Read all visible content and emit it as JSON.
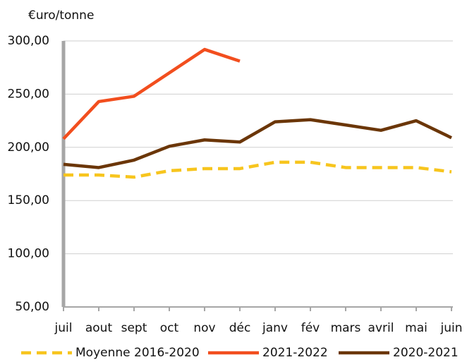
{
  "chart_data": {
    "type": "line",
    "ylabel": "€uro/tonne",
    "categories": [
      "juil",
      "aout",
      "sept",
      "oct",
      "nov",
      "déc",
      "janv",
      "fév",
      "mars",
      "avril",
      "mai",
      "juin"
    ],
    "series": [
      {
        "name": "Moyenne 2016-2020",
        "color": "#f7c51e",
        "dashed": true,
        "values": [
          174,
          174,
          172,
          178,
          180,
          180,
          186,
          186,
          181,
          181,
          181,
          177
        ]
      },
      {
        "name": "2021-2022",
        "color": "#f24e1e",
        "dashed": false,
        "values": [
          208,
          243,
          248,
          270,
          292,
          281,
          null,
          null,
          null,
          null,
          null,
          null
        ]
      },
      {
        "name": "2020-2021",
        "color": "#6b3608",
        "dashed": false,
        "values": [
          184,
          181,
          188,
          201,
          207,
          205,
          224,
          226,
          221,
          216,
          225,
          209
        ]
      }
    ],
    "ylim": [
      50,
      300
    ],
    "yticks": [
      {
        "value": 50,
        "label": "50,00"
      },
      {
        "value": 100,
        "label": "100,00"
      },
      {
        "value": 150,
        "label": "150,00"
      },
      {
        "value": 200,
        "label": "200,00"
      },
      {
        "value": 250,
        "label": "250,00"
      },
      {
        "value": 300,
        "label": "300,00"
      }
    ],
    "grid": true,
    "legend": "bottom"
  }
}
